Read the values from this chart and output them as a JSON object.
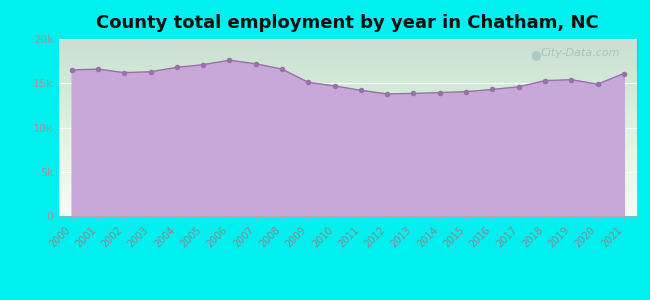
{
  "title": "County total employment by year in Chatham, NC",
  "title_fontsize": 13,
  "title_fontweight": "bold",
  "background_color": "#00EFEF",
  "plot_bg_top": "#eafaea",
  "plot_bg_bottom": "#f8f0ff",
  "fill_color": "#C8A8D8",
  "line_color": "#9970AA",
  "marker_color": "#9970AA",
  "years": [
    2000,
    2001,
    2002,
    2003,
    2004,
    2005,
    2006,
    2007,
    2008,
    2009,
    2010,
    2011,
    2012,
    2013,
    2014,
    2015,
    2016,
    2017,
    2018,
    2019,
    2020,
    2021
  ],
  "values": [
    16500,
    16600,
    16200,
    16300,
    16800,
    17100,
    17600,
    17200,
    16600,
    15100,
    14700,
    14200,
    13800,
    13850,
    13950,
    14050,
    14300,
    14600,
    15300,
    15400,
    14900,
    16100
  ],
  "ylim": [
    0,
    20000
  ],
  "yticks": [
    0,
    5000,
    10000,
    15000,
    20000
  ],
  "ytick_labels": [
    "0",
    "5k",
    "10k",
    "15k",
    "20k"
  ],
  "watermark": "City-Data.com"
}
